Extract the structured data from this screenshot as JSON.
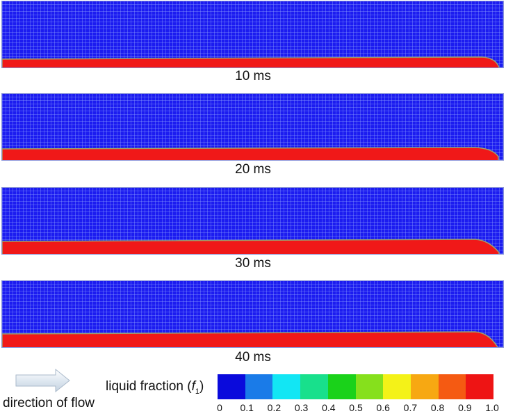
{
  "panels": [
    {
      "label": "10 ms"
    },
    {
      "label": "20 ms"
    },
    {
      "label": "30 ms"
    },
    {
      "label": "40 ms"
    }
  ],
  "flow": {
    "text": "direction of flow"
  },
  "legend": {
    "title_prefix": "liquid fraction (",
    "variable": "f",
    "subscript": "1",
    "title_suffix": ")",
    "ticks": [
      "0",
      "0.1",
      "0.2",
      "0.3",
      "0.4",
      "0.5",
      "0.6",
      "0.7",
      "0.8",
      "0.9",
      "1.0"
    ],
    "colors": [
      "#0a0adc",
      "#1a7be8",
      "#12e6f4",
      "#18e08c",
      "#1ad21a",
      "#86e01c",
      "#f4f218",
      "#f7a812",
      "#f55a12",
      "#ee1414"
    ]
  }
}
